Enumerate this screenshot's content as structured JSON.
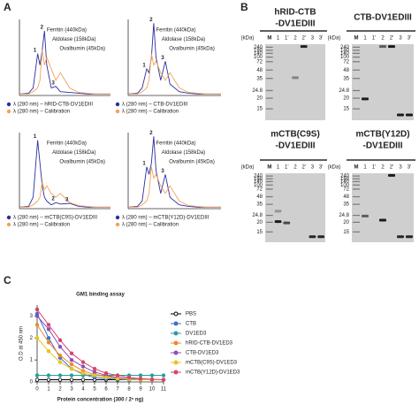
{
  "panels": {
    "a": "A",
    "b": "B",
    "c": "C"
  },
  "gels": {
    "unit": "(kDa)",
    "marker": "M",
    "lanes": [
      "1",
      "1'",
      "2",
      "2'",
      "3",
      "3'"
    ],
    "marker_sizes": [
      "240",
      "180",
      "140",
      "100",
      "72",
      "48",
      "35",
      "24.8",
      "20",
      "15"
    ],
    "titles": [
      [
        "hRID-CTB",
        "-DV1EDIII"
      ],
      [
        "CTB-DV1EDIII"
      ],
      [
        "mCTB(C9S)",
        "-DV1EDIII"
      ],
      [
        "mCTB(Y12D)",
        "-DV1EDIII"
      ]
    ]
  },
  "chart_data": [
    {
      "type": "line",
      "xlim": [
        5,
        25
      ],
      "ylim": [
        0,
        1
      ],
      "x": [
        5,
        7,
        8,
        9,
        9.5,
        10,
        10.5,
        11,
        12,
        13,
        14,
        16,
        18,
        20,
        22,
        25
      ],
      "series": [
        {
          "name": "λ (280 nm) – hRID-CTB-DV1EDIII",
          "color": "#2b2f9e",
          "values": [
            0.02,
            0.03,
            0.1,
            0.55,
            0.4,
            0.6,
            0.85,
            0.4,
            0.1,
            0.12,
            0.05,
            0.04,
            0.03,
            0.02,
            0.02,
            0.02
          ]
        },
        {
          "name": "λ (280 nm) – Calibration",
          "color": "#f2a15a",
          "values": [
            0.02,
            0.02,
            0.05,
            0.1,
            0.2,
            0.6,
            0.4,
            0.5,
            0.35,
            0.2,
            0.3,
            0.1,
            0.04,
            0.03,
            0.02,
            0.02
          ]
        }
      ],
      "peak_labels": [
        "1",
        "2",
        "3"
      ],
      "annotations": [
        "Ferritin (440kDa)",
        "Aldolase (158kDa)",
        "Ovalbumin (45kDa)"
      ]
    },
    {
      "type": "line",
      "xlim": [
        5,
        25
      ],
      "ylim": [
        0,
        1
      ],
      "x": [
        5,
        7,
        8,
        9,
        9.5,
        10,
        10.5,
        11,
        12,
        13,
        14,
        16,
        18,
        20,
        22,
        25
      ],
      "series": [
        {
          "name": "λ (280 nm) – CTB-DV1EDIII",
          "color": "#2b2f9e",
          "values": [
            0.02,
            0.03,
            0.1,
            0.35,
            0.3,
            0.5,
            0.95,
            0.5,
            0.2,
            0.45,
            0.15,
            0.05,
            0.03,
            0.02,
            0.02,
            0.02
          ]
        },
        {
          "name": "λ (280 nm) – Calibration",
          "color": "#f2a15a",
          "values": [
            0.02,
            0.02,
            0.05,
            0.1,
            0.2,
            0.55,
            0.4,
            0.45,
            0.3,
            0.2,
            0.3,
            0.1,
            0.04,
            0.03,
            0.02,
            0.02
          ]
        }
      ],
      "peak_labels": [
        "1",
        "2",
        "3"
      ],
      "annotations": [
        "Ferritin (440kDa)",
        "Aldolase (158kDa)",
        "Ovalbumin (45kDa)"
      ]
    },
    {
      "type": "line",
      "xlim": [
        5,
        25
      ],
      "ylim": [
        0,
        1
      ],
      "x": [
        5,
        7,
        8,
        9,
        9.5,
        10,
        10.5,
        11,
        12,
        13,
        14,
        16,
        18,
        20,
        22,
        25
      ],
      "series": [
        {
          "name": "λ (280 nm) – mCTB(C9S)-DV1EDIII",
          "color": "#2b2f9e",
          "values": [
            0.02,
            0.03,
            0.15,
            0.9,
            0.6,
            0.3,
            0.15,
            0.1,
            0.05,
            0.08,
            0.06,
            0.07,
            0.03,
            0.02,
            0.02,
            0.02
          ]
        },
        {
          "name": "λ (280 nm) – Calibration",
          "color": "#f2a15a",
          "values": [
            0.02,
            0.02,
            0.05,
            0.1,
            0.15,
            0.35,
            0.25,
            0.3,
            0.2,
            0.15,
            0.2,
            0.08,
            0.04,
            0.03,
            0.02,
            0.02
          ]
        }
      ],
      "peak_labels": [
        "1",
        "2",
        "3"
      ],
      "annotations": [
        "Ferritin (440kDa)",
        "Aldolase (158kDa)",
        "Ovalbumin (45kDa)"
      ]
    },
    {
      "type": "line",
      "xlim": [
        5,
        25
      ],
      "ylim": [
        0,
        1
      ],
      "x": [
        5,
        7,
        8,
        9,
        9.5,
        10,
        10.5,
        11,
        12,
        13,
        14,
        16,
        18,
        20,
        22,
        25
      ],
      "series": [
        {
          "name": "λ (280 nm) – mCTB(Y12D)-DV1EDIII",
          "color": "#2b2f9e",
          "values": [
            0.02,
            0.03,
            0.1,
            0.55,
            0.45,
            0.6,
            0.95,
            0.5,
            0.2,
            0.45,
            0.15,
            0.05,
            0.03,
            0.02,
            0.02,
            0.02
          ]
        },
        {
          "name": "λ (280 nm) – Calibration",
          "color": "#f2a15a",
          "values": [
            0.02,
            0.02,
            0.05,
            0.1,
            0.2,
            0.55,
            0.4,
            0.45,
            0.3,
            0.2,
            0.3,
            0.1,
            0.04,
            0.03,
            0.02,
            0.02
          ]
        }
      ],
      "peak_labels": [
        "1",
        "2",
        "3"
      ],
      "annotations": [
        "Ferritin (440kDa)",
        "Aldolase (158kDa)",
        "Ovalbumin (45kDa)"
      ]
    },
    {
      "type": "line",
      "title": "GM1 binding assay",
      "xlabel": "Protein concentration (300 / 2ⁿ ng)",
      "ylabel": "O.D at 450 nm",
      "x": [
        0,
        1,
        2,
        3,
        4,
        5,
        6,
        7,
        8,
        9,
        10,
        11
      ],
      "xlim": [
        0,
        11
      ],
      "xticks": [
        0,
        1,
        2,
        3,
        4,
        5,
        6,
        7,
        8,
        9,
        10,
        11
      ],
      "ylim": [
        0,
        3.5
      ],
      "yticks": [
        0,
        1,
        2,
        3
      ],
      "markers": true,
      "series": [
        {
          "name": "PBS",
          "color": "#000000",
          "marker": "open",
          "values": [
            0.1,
            0.1,
            0.1,
            0.1,
            0.1,
            0.1,
            0.1,
            0.1,
            0.1,
            0.1,
            0.1,
            0.1
          ]
        },
        {
          "name": "CTB",
          "color": "#3b6fd1",
          "marker": "filled",
          "values": [
            3.1,
            2.0,
            1.1,
            0.6,
            0.35,
            0.2,
            0.15,
            0.12,
            0.1,
            0.1,
            0.1,
            0.1
          ]
        },
        {
          "name": "DV1ED3",
          "color": "#2a9d9d",
          "marker": "filled",
          "values": [
            0.3,
            0.3,
            0.3,
            0.3,
            0.3,
            0.3,
            0.3,
            0.3,
            0.3,
            0.3,
            0.3,
            0.3
          ]
        },
        {
          "name": "hRID-CTB-DV1ED3",
          "color": "#f08a24",
          "marker": "filled",
          "values": [
            2.6,
            1.8,
            1.2,
            0.8,
            0.5,
            0.35,
            0.25,
            0.18,
            0.14,
            0.12,
            0.1,
            0.1
          ]
        },
        {
          "name": "CTB-DV1ED3",
          "color": "#8a4fb8",
          "marker": "filled",
          "values": [
            3.0,
            2.4,
            1.6,
            1.0,
            0.7,
            0.45,
            0.3,
            0.2,
            0.15,
            0.12,
            0.1,
            0.1
          ]
        },
        {
          "name": "mCTB(C9S)-DV1ED3",
          "color": "#e8c321",
          "marker": "filled",
          "values": [
            2.0,
            1.4,
            0.9,
            0.6,
            0.4,
            0.3,
            0.2,
            0.15,
            0.12,
            0.1,
            0.1,
            0.1
          ]
        },
        {
          "name": "mCTB(Y12D)-DV1ED3",
          "color": "#d9446a",
          "marker": "filled",
          "values": [
            3.3,
            2.6,
            1.9,
            1.3,
            0.9,
            0.6,
            0.4,
            0.3,
            0.2,
            0.15,
            0.12,
            0.1
          ]
        }
      ]
    }
  ]
}
